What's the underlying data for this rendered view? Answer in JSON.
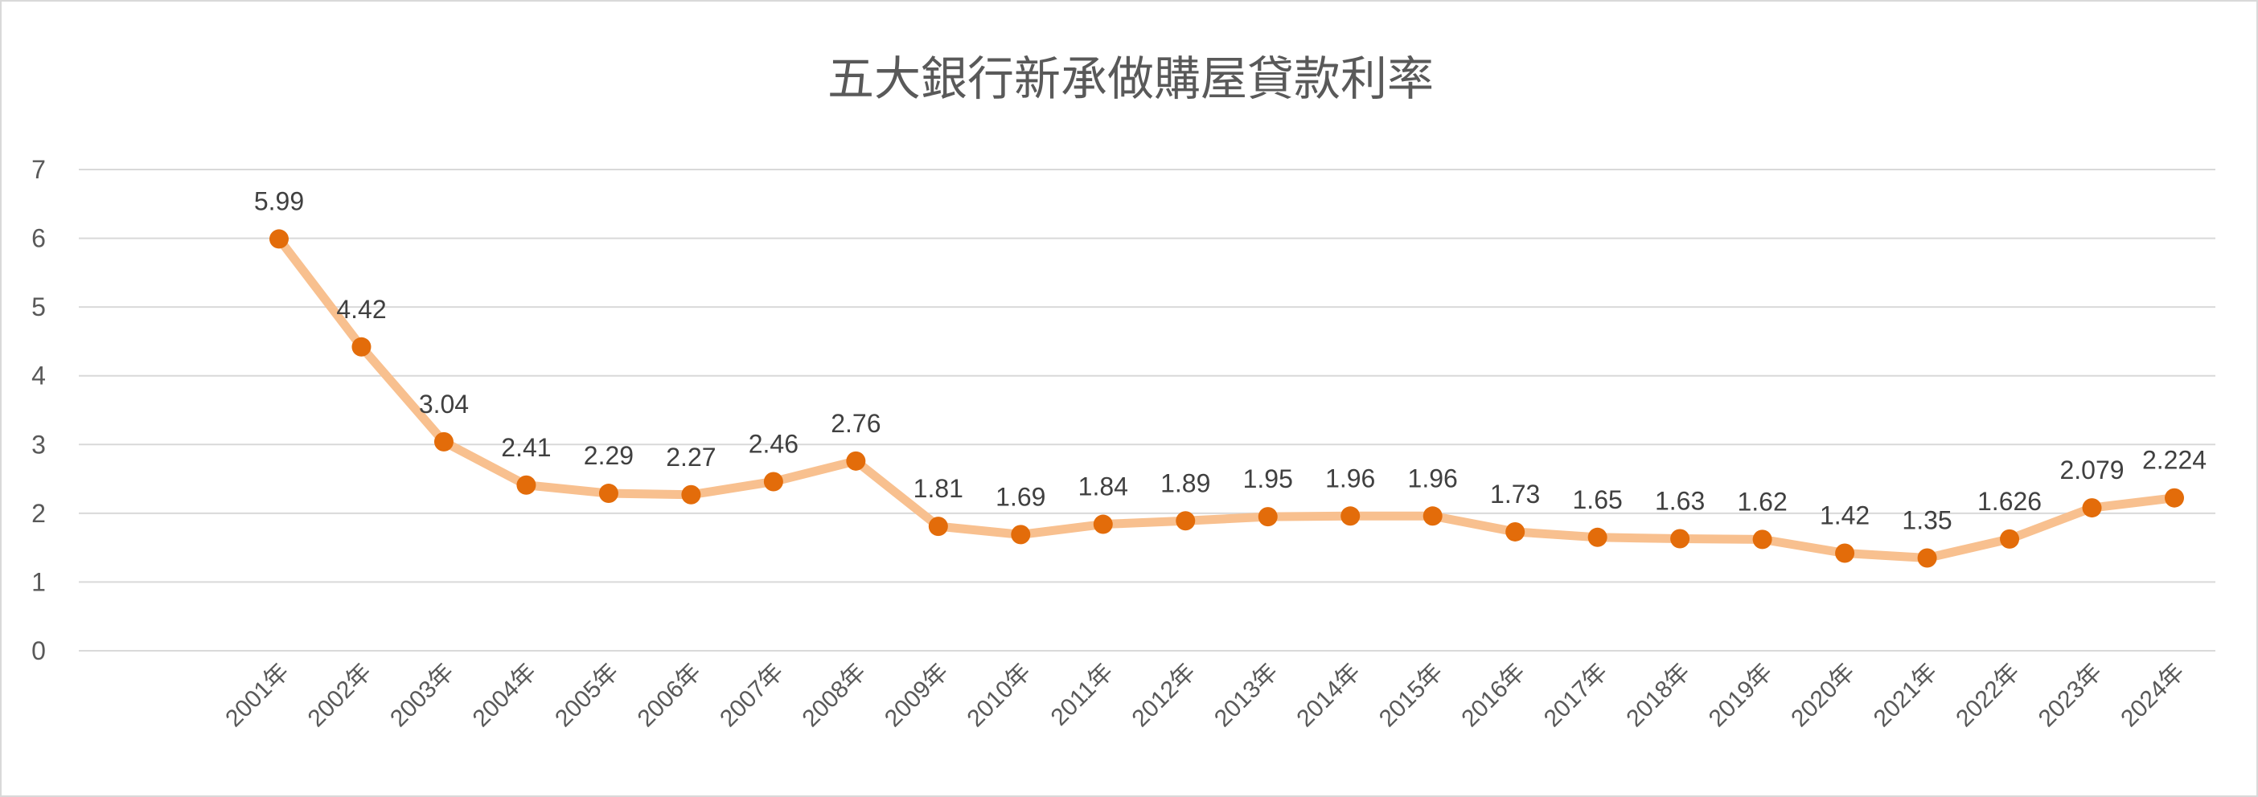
{
  "chart_data": {
    "type": "line",
    "title": "五大銀行新承做購屋貸款利率",
    "xlabel": "",
    "ylabel": "",
    "ylim": [
      0,
      7
    ],
    "yticks": [
      "0",
      "1",
      "2",
      "3",
      "4",
      "5",
      "6",
      "7"
    ],
    "grid": true,
    "legend": "none",
    "categories": [
      "2001年",
      "2002年",
      "2003年",
      "2004年",
      "2005年",
      "2006年",
      "2007年",
      "2008年",
      "2009年",
      "2010年",
      "2011年",
      "2012年",
      "2013年",
      "2014年",
      "2015年",
      "2016年",
      "2017年",
      "2018年",
      "2019年",
      "2020年",
      "2021年",
      "2022年",
      "2023年",
      "2024年"
    ],
    "series": [
      {
        "name": "五大銀行新承做購屋貸款利率",
        "values": [
          5.99,
          4.42,
          3.04,
          2.41,
          2.29,
          2.27,
          2.46,
          2.76,
          1.81,
          1.69,
          1.84,
          1.89,
          1.95,
          1.96,
          1.96,
          1.73,
          1.65,
          1.63,
          1.62,
          1.42,
          1.35,
          1.626,
          2.079,
          2.224
        ],
        "labels": [
          "5.99",
          "4.42",
          "3.04",
          "2.41",
          "2.29",
          "2.27",
          "2.46",
          "2.76",
          "1.81",
          "1.69",
          "1.84",
          "1.89",
          "1.95",
          "1.96",
          "1.96",
          "1.73",
          "1.65",
          "1.63",
          "1.62",
          "1.42",
          "1.35",
          "1.626",
          "2.079",
          "2.224"
        ],
        "line_color": "#F8C08F",
        "marker_color": "#E36C0A"
      }
    ],
    "grid_color": "#d9d9d9"
  }
}
